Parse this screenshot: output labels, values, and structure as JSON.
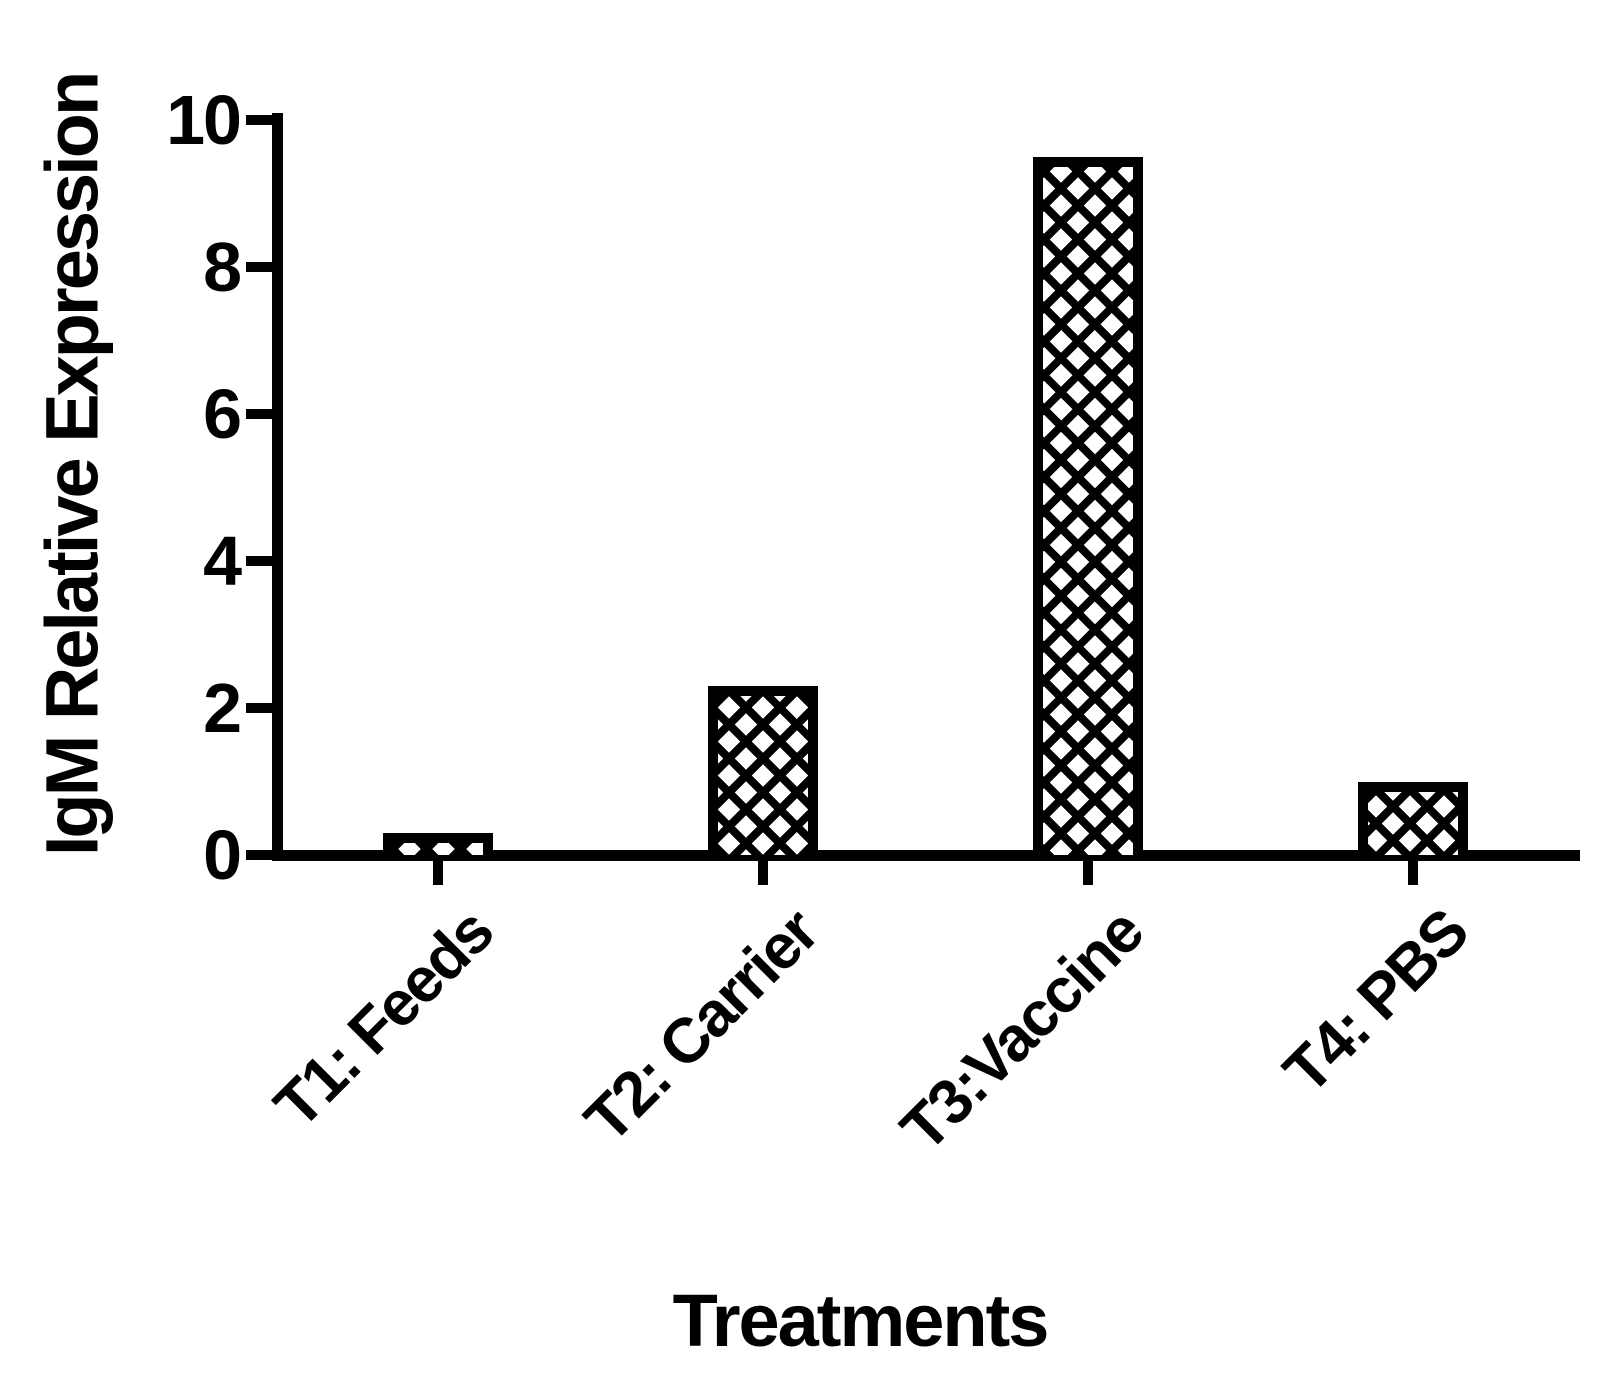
{
  "chart_data": {
    "type": "bar",
    "title": "",
    "xlabel": "Treatments",
    "ylabel": "IgM Relative Expression",
    "categories": [
      "T1: Feeds",
      "T2: Carrier",
      "T3:Vaccine",
      "T4: PBS"
    ],
    "values": [
      0.3,
      2.3,
      9.5,
      1.0
    ],
    "ylim": [
      0,
      10
    ],
    "yticks": [
      0,
      2,
      4,
      6,
      8,
      10
    ],
    "ytick_labels": [
      "0",
      "2",
      "4",
      "6",
      "8",
      "10"
    ],
    "grid": "off",
    "legend": "none",
    "bar_fill_pattern": "diagonal-crosshatch",
    "bar_color": "#000000",
    "background_color": "#ffffff"
  }
}
